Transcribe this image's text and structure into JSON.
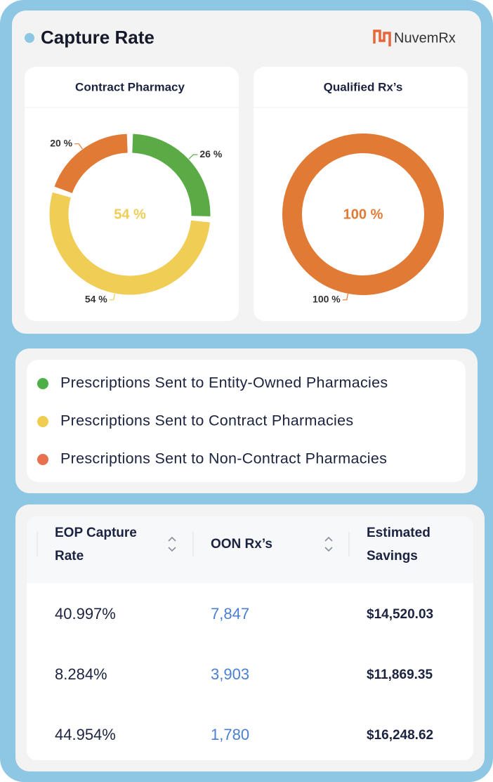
{
  "header": {
    "title": "Capture Rate",
    "logo": "NuvemRx"
  },
  "chart_data": [
    {
      "type": "donut",
      "title": "Contract Pharmacy",
      "values": [
        26,
        54,
        20
      ],
      "value_labels": [
        "26 %",
        "54 %",
        "20 %"
      ],
      "colors": [
        "#5aab45",
        "#f0cd55",
        "#e07a35"
      ],
      "center_label": "54 %",
      "center_color": "#f0cd55"
    },
    {
      "type": "donut",
      "title": "Qualified Rx’s",
      "values": [
        100
      ],
      "value_labels": [
        "100 %"
      ],
      "colors": [
        "#e07a35"
      ],
      "center_label": "100 %",
      "center_color": "#e07a35"
    }
  ],
  "legend": {
    "items": [
      {
        "name": "Prescriptions Sent to Entity-Owned Pharmacies",
        "color": "#4caf48"
      },
      {
        "name": "Prescriptions Sent to Contract Pharmacies",
        "color": "#efcd50"
      },
      {
        "name": "Prescriptions Sent to Non-Contract Pharmacies",
        "color": "#e8704f"
      }
    ]
  },
  "table": {
    "columns": [
      "EOP Capture Rate",
      "OON Rx’s",
      "Estimated Savings"
    ],
    "rows": [
      [
        "40.997%",
        "7,847",
        "$14,520.03"
      ],
      [
        "8.284%",
        "3,903",
        "$11,869.35"
      ],
      [
        "44.954%",
        "1,780",
        "$16,248.62"
      ]
    ]
  }
}
